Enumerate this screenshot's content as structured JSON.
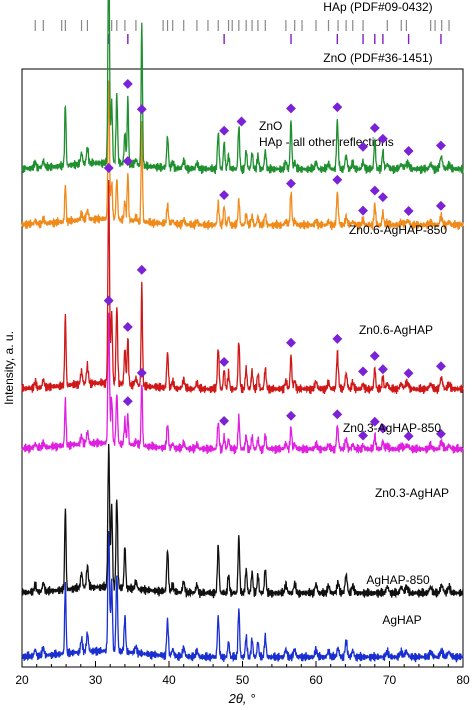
{
  "chart_data": {
    "type": "line",
    "xlabel": "2θ, °",
    "ylabel": "Intensity, a. u.",
    "xlim": [
      20,
      80
    ],
    "xticks": [
      "20",
      "30",
      "40",
      "50",
      "60",
      "70",
      "80"
    ],
    "grid": false,
    "legend": {
      "marker_label": "ZnO",
      "note": "HAp - all other reflections",
      "placement": "top-right"
    },
    "references": [
      {
        "name": "HAp (PDF#09-0432)",
        "color": "#888888",
        "positions": [
          21.8,
          22.9,
          25.4,
          25.9,
          28.1,
          28.9,
          31.8,
          32.2,
          32.9,
          34.0,
          35.5,
          39.2,
          39.8,
          40.5,
          42.0,
          43.8,
          45.3,
          46.7,
          48.1,
          48.6,
          49.5,
          50.5,
          51.3,
          52.1,
          53.1,
          55.9,
          57.1,
          58.1,
          60.0,
          61.7,
          63.0,
          64.1,
          65.0,
          66.4,
          69.7,
          71.6,
          72.3,
          75.6,
          76.2,
          77.1,
          78.1
        ]
      },
      {
        "name": "ZnO (PDF#36-1451)",
        "color": "#8020c0",
        "positions": [
          31.8,
          34.4,
          36.3,
          47.5,
          56.6,
          62.9,
          66.4,
          68.0,
          69.1,
          72.6,
          77.0
        ]
      }
    ],
    "zno_peaks": [
      31.8,
      34.4,
      36.3,
      47.5,
      56.6,
      62.9,
      66.4,
      68.0,
      69.1,
      72.6,
      77.0
    ],
    "series": [
      {
        "name": "AgHAP",
        "color": "#1a2fd0",
        "offset": 0.0,
        "zno": 0.0,
        "hap": 0.85
      },
      {
        "name": "AgHAP-850",
        "color": "#111111",
        "offset": 0.8,
        "zno": 0.0,
        "hap": 1.0
      },
      {
        "name": "Zn0.3-AgHAP",
        "color": "#e020e0",
        "offset": 2.6,
        "zno": 0.45,
        "hap": 0.55
      },
      {
        "name": "Zn0.3-AgHAP-850",
        "color": "#d01818",
        "offset": 3.35,
        "zno": 0.7,
        "hap": 0.85
      },
      {
        "name": "Zn0.6-AgHAP",
        "color": "#f08a1a",
        "offset": 5.4,
        "zno": 0.7,
        "hap": 0.45
      },
      {
        "name": "Zn0.6-AgHAP-850",
        "color": "#1f8f2f",
        "offset": 6.1,
        "zno": 1.0,
        "hap": 0.75
      }
    ]
  }
}
